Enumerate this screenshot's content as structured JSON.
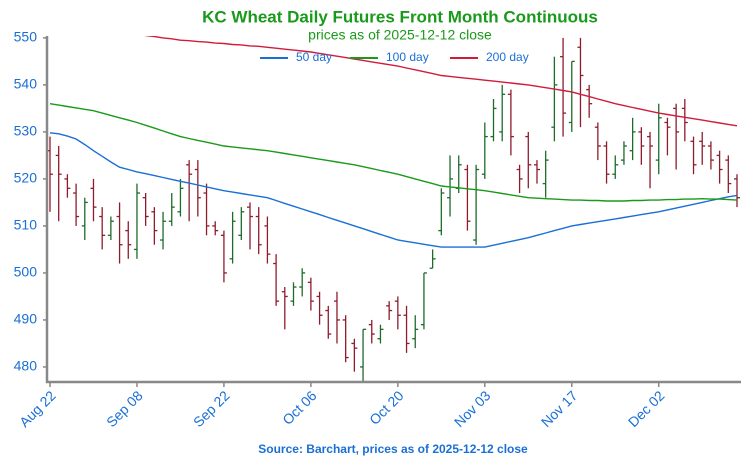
{
  "chart_data": {
    "type": "ohlc",
    "title": "KC Wheat Daily Futures Front Month Continuous",
    "subtitle": "prices as of 2025-12-12 close",
    "source": "Source: Barchart, prices as of 2025-12-12 close",
    "categories": [
      "Aug 22",
      null,
      null,
      null,
      null,
      null,
      null,
      null,
      null,
      null,
      "Sep 08",
      null,
      null,
      null,
      null,
      null,
      null,
      null,
      null,
      null,
      "Sep 22",
      null,
      null,
      null,
      null,
      null,
      null,
      null,
      null,
      null,
      "Oct 06",
      null,
      null,
      null,
      null,
      null,
      null,
      null,
      null,
      null,
      "Oct 20",
      null,
      null,
      null,
      null,
      null,
      null,
      null,
      null,
      null,
      "Nov 03",
      null,
      null,
      null,
      null,
      null,
      null,
      null,
      null,
      null,
      "Nov 17",
      null,
      null,
      null,
      null,
      null,
      null,
      null,
      null,
      null,
      "Dec 02",
      null,
      null,
      null,
      null,
      null,
      null,
      null,
      null,
      null
    ],
    "open": [
      526,
      525,
      520,
      517,
      510,
      518,
      512,
      508,
      512,
      509,
      505,
      516,
      513,
      507,
      511,
      513,
      523,
      522,
      517,
      510,
      508,
      503,
      508,
      514,
      512,
      510,
      502,
      496,
      494,
      497,
      498,
      495,
      492,
      494,
      490,
      485,
      480,
      489,
      486,
      493,
      494,
      491,
      486,
      489,
      501,
      509,
      516,
      518,
      522,
      507,
      521,
      529,
      530,
      538,
      522,
      529,
      523,
      519,
      531,
      546,
      532,
      548,
      539,
      531,
      527,
      521,
      524,
      526,
      530,
      529,
      524,
      532,
      535,
      535,
      528,
      528,
      527,
      525,
      524,
      520
    ],
    "high": [
      529,
      527,
      521,
      519,
      516,
      520,
      514,
      512,
      515,
      511,
      519,
      517,
      514,
      513,
      517,
      520,
      524,
      524,
      519,
      511,
      509,
      513,
      514,
      515,
      514,
      512,
      504,
      497,
      498,
      501,
      499,
      496,
      493,
      496,
      491,
      486,
      488,
      490,
      489,
      494,
      495,
      493,
      491,
      500,
      505,
      518,
      525,
      525,
      523,
      523,
      532,
      537,
      540,
      539,
      523,
      530,
      524,
      526,
      546,
      550,
      545,
      550,
      540,
      532,
      528,
      525,
      528,
      533,
      531,
      530,
      536,
      533,
      536,
      537,
      529,
      530,
      528,
      526,
      525,
      521
    ],
    "low": [
      513,
      511,
      516,
      510,
      507,
      511,
      505,
      507,
      502,
      503,
      503,
      510,
      506,
      505,
      510,
      512,
      511,
      512,
      508,
      508,
      498,
      502,
      507,
      505,
      504,
      502,
      493,
      488,
      493,
      495,
      492,
      489,
      486,
      485,
      481,
      479,
      477,
      485,
      485,
      490,
      488,
      483,
      484,
      488,
      501,
      508,
      512,
      517,
      509,
      506,
      520,
      528,
      528,
      525,
      517,
      518,
      519,
      516,
      528,
      529,
      530,
      531,
      533,
      524,
      519,
      520,
      523,
      524,
      523,
      518,
      521,
      525,
      522,
      528,
      521,
      523,
      522,
      519,
      517,
      514
    ],
    "close": [
      521,
      521,
      518,
      512,
      515,
      514,
      508,
      511,
      506,
      506,
      517,
      512,
      509,
      511,
      514,
      518,
      521,
      516,
      510,
      509,
      500,
      511,
      513,
      512,
      506,
      504,
      494,
      495,
      497,
      500,
      494,
      491,
      487,
      490,
      482,
      484,
      488,
      487,
      488,
      492,
      491,
      485,
      488,
      500,
      503,
      517,
      520,
      523,
      511,
      522,
      529,
      535,
      538,
      529,
      520,
      523,
      522,
      524,
      540,
      534,
      545,
      542,
      536,
      527,
      521,
      523,
      527,
      530,
      527,
      527,
      533,
      531,
      530,
      532,
      523,
      527,
      524,
      522,
      519,
      516
    ],
    "up_color": "#1e6b2a",
    "down_color": "#8e1c2c",
    "series": [
      {
        "name": "50 day",
        "color": "#1a6fd6",
        "values": [
          529.8,
          529.6,
          529.1,
          528.5,
          527.3,
          526,
          524.8,
          523.6,
          522.5,
          522,
          521.5,
          521.1,
          520.7,
          520.3,
          519.9,
          519.5,
          519.1,
          518.7,
          518.3,
          517.9,
          517.5,
          517.2,
          516.9,
          516.6,
          516.3,
          516,
          515.4,
          514.8,
          514.2,
          513.6,
          513,
          512.4,
          511.8,
          511.2,
          510.6,
          510,
          509.4,
          508.8,
          508.2,
          507.6,
          507,
          506.7,
          506.4,
          506.1,
          505.8,
          505.5,
          505.5,
          505.5,
          505.5,
          505.5,
          505.5,
          505.9,
          506.3,
          506.7,
          507.1,
          507.5,
          508,
          508.5,
          509,
          509.5,
          510,
          510.3,
          510.6,
          510.9,
          511.2,
          511.5,
          511.8,
          512.1,
          512.4,
          512.7,
          513,
          513.4,
          513.8,
          514.2,
          514.6,
          515,
          515.4,
          515.8,
          516.2,
          516.5
        ]
      },
      {
        "name": "100 day",
        "color": "#1a9a1a",
        "values": [
          536,
          535.7,
          535.4,
          535.1,
          534.8,
          534.5,
          534,
          533.5,
          533,
          532.5,
          532,
          531.4,
          530.8,
          530.2,
          529.6,
          529,
          528.6,
          528.2,
          527.8,
          527.4,
          527,
          526.8,
          526.6,
          526.4,
          526.2,
          526,
          525.7,
          525.4,
          525.1,
          524.8,
          524.5,
          524.2,
          523.9,
          523.6,
          523.3,
          523,
          522.6,
          522.2,
          521.8,
          521.4,
          521,
          520.5,
          520,
          519.5,
          519,
          518.5,
          518.3,
          518.1,
          517.9,
          517.7,
          517.5,
          517.2,
          516.9,
          516.6,
          516.3,
          516,
          515.9,
          515.8,
          515.7,
          515.6,
          515.5,
          515.5,
          515.4,
          515.4,
          515.3,
          515.3,
          515.3,
          515.4,
          515.4,
          515.5,
          515.5,
          515.6,
          515.6,
          515.7,
          515.7,
          515.8,
          515.7,
          515.7,
          515.6,
          515.5
        ]
      },
      {
        "name": "200 day",
        "color": "#d01c3c",
        "values": [
          null,
          null,
          null,
          null,
          null,
          null,
          null,
          null,
          null,
          null,
          550.8,
          550.5,
          550.3,
          550,
          549.8,
          549.5,
          549.4,
          549.2,
          549.1,
          548.9,
          548.8,
          548.6,
          548.5,
          548.3,
          548.2,
          548,
          547.8,
          547.6,
          547.4,
          547.2,
          547,
          546.7,
          546.4,
          546.1,
          545.8,
          545.5,
          545.2,
          544.9,
          544.6,
          544.3,
          544,
          543.6,
          543.2,
          542.8,
          542.4,
          542,
          541.8,
          541.6,
          541.4,
          541.2,
          541,
          540.8,
          540.6,
          540.4,
          540.2,
          540,
          539.7,
          539.4,
          539.1,
          538.8,
          538.5,
          538,
          537.5,
          537,
          536.5,
          536,
          535.6,
          535.2,
          534.8,
          534.4,
          534,
          533.7,
          533.4,
          533.1,
          532.8,
          532.5,
          532.2,
          531.9,
          531.6,
          531.3
        ]
      }
    ],
    "ylim": [
      476.8,
      550.4
    ],
    "yticks": [
      480,
      490,
      500,
      510,
      520,
      530,
      540,
      550
    ],
    "legend": "upper center",
    "grid": false
  }
}
